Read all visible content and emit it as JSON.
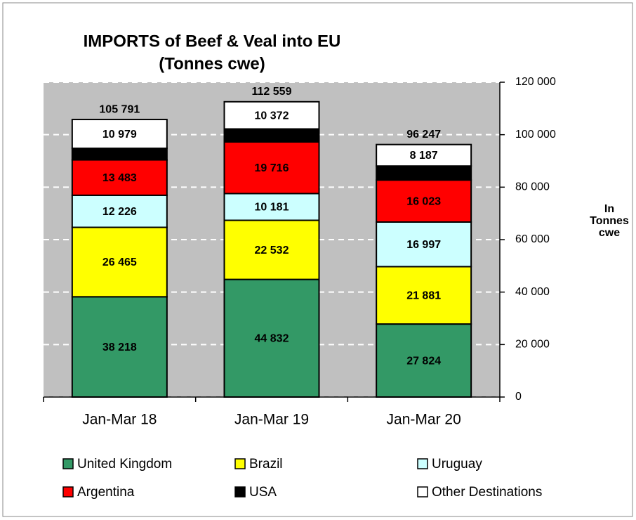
{
  "chart_data": {
    "type": "stacked_bar",
    "title": "IMPORTS of Beef & Veal into EU",
    "subtitle": "(Tonnes cwe)",
    "y_label": [
      "In",
      "Tonnes",
      "cwe"
    ],
    "categories": [
      "Jan-Mar 18",
      "Jan-Mar 19",
      "Jan-Mar 20"
    ],
    "series": [
      {
        "name": "United Kingdom",
        "color": "#339966",
        "values": [
          38218,
          44832,
          27824
        ],
        "value_labels": [
          "38 218",
          "44 832",
          "27 824"
        ]
      },
      {
        "name": "Brazil",
        "color": "#ffff00",
        "values": [
          26465,
          22532,
          21881
        ],
        "value_labels": [
          "26 465",
          "22 532",
          "21 881"
        ]
      },
      {
        "name": "Uruguay",
        "color": "#ccffff",
        "values": [
          12226,
          10181,
          16997
        ],
        "value_labels": [
          "12 226",
          "10 181",
          "16 997"
        ]
      },
      {
        "name": "Argentina",
        "color": "#ff0000",
        "values": [
          13483,
          19716,
          16023
        ],
        "value_labels": [
          "13 483",
          "19 716",
          "16 023"
        ]
      },
      {
        "name": "USA",
        "color": "#000000",
        "values": [
          4420,
          4926,
          5335
        ]
      },
      {
        "name": "Other Destinations",
        "color": "#ffffff",
        "values": [
          10979,
          10372,
          8187
        ],
        "value_labels": [
          "10 979",
          "10 372",
          "8 187"
        ]
      }
    ],
    "totals": {
      "values": [
        105791,
        112559,
        96247
      ],
      "value_labels": [
        "105 791",
        "112 559",
        "96 247"
      ]
    },
    "ylim": [
      0,
      120000
    ],
    "yticks": [
      0,
      {
        "value": 20000,
        "label": "20 000"
      },
      {
        "value": 40000,
        "label": "40 000"
      },
      {
        "value": 60000,
        "label": "60 000"
      },
      {
        "value": 80000,
        "label": "80 000"
      },
      {
        "value": 100000,
        "label": "100 000"
      },
      {
        "value": 120000,
        "label": "120 000"
      }
    ],
    "grid": true,
    "legend": "bottom"
  }
}
